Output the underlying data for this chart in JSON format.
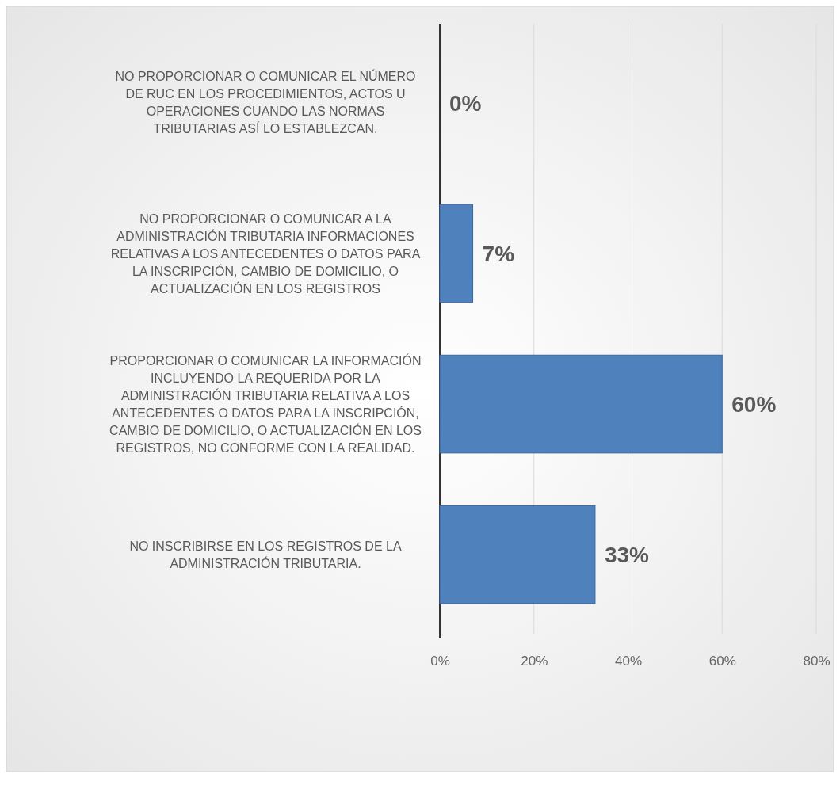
{
  "chart_data": {
    "type": "bar",
    "orientation": "horizontal",
    "categories": [
      "NO PROPORCIONAR O COMUNICAR EL NÚMERO DE RUC EN LOS PROCEDIMIENTOS, ACTOS U OPERACIONES CUANDO LAS NORMAS TRIBUTARIAS ASÍ LO ESTABLEZCAN.",
      "NO PROPORCIONAR O COMUNICAR A LA ADMINISTRACIÓN TRIBUTARIA INFORMACIONES RELATIVAS A LOS ANTECEDENTES O DATOS PARA LA INSCRIPCIÓN, CAMBIO DE DOMICILIO, O ACTUALIZACIÓN EN LOS REGISTROS",
      "PROPORCIONAR O COMUNICAR LA INFORMACIÓN INCLUYENDO LA REQUERIDA POR LA ADMINISTRACIÓN TRIBUTARIA RELATIVA A LOS ANTECEDENTES O DATOS PARA LA INSCRIPCIÓN, CAMBIO DE DOMICILIO, O ACTUALIZACIÓN EN LOS REGISTROS, NO CONFORME CON LA REALIDAD.",
      "NO INSCRIBIRSE EN LOS REGISTROS DE LA ADMINISTRACIÓN TRIBUTARIA."
    ],
    "values": [
      0,
      7,
      60,
      33
    ],
    "value_labels": [
      "0%",
      "7%",
      "60%",
      "33%"
    ],
    "color": "#4f81bd",
    "xlim": [
      0,
      80
    ],
    "xticks": [
      {
        "value": 0,
        "label": "0%"
      },
      {
        "value": 20,
        "label": "20%"
      },
      {
        "value": 40,
        "label": "40%"
      },
      {
        "value": 60,
        "label": "60%"
      },
      {
        "value": 80,
        "label": "80%"
      }
    ],
    "grid": "x"
  }
}
